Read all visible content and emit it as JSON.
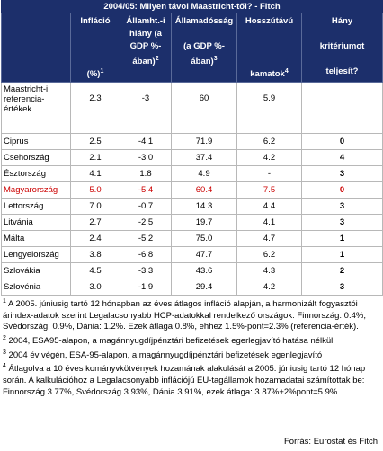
{
  "title": "2004/05: Milyen távol Maastricht-től? - Fitch",
  "header": [
    {
      "lines": [
        "Infláció",
        "",
        "",
        "",
        "(%)"
      ],
      "sup": "1"
    },
    {
      "lines": [
        "Államht.-i",
        "hiány (a",
        "GDP %-",
        "ában)"
      ],
      "sup": "2"
    },
    {
      "lines": [
        "Államadósság",
        "",
        "(a GDP %-",
        "ában)"
      ],
      "sup": "3"
    },
    {
      "lines": [
        "Hosszútávú",
        "",
        "",
        "",
        "kamatok"
      ],
      "sup": "4"
    },
    {
      "lines": [
        "Hány",
        "",
        "kritériumot",
        "",
        "teljesít?"
      ]
    }
  ],
  "reference": {
    "label": "Maastricht-i referencia-értékek",
    "values": [
      "2.3",
      "-3",
      "60",
      "5.9"
    ]
  },
  "rows": [
    {
      "country": "Ciprus",
      "values": [
        "2.5",
        "-4.1",
        "71.9",
        "6.2"
      ],
      "criteria": "0"
    },
    {
      "country": "Csehország",
      "values": [
        "2.1",
        "-3.0",
        "37.4",
        "4.2"
      ],
      "criteria": "4"
    },
    {
      "country": "Észtország",
      "values": [
        "4.1",
        "1.8",
        "4.9",
        "-"
      ],
      "criteria": "3"
    },
    {
      "country": "Magyarország",
      "values": [
        "5.0",
        "-5.4",
        "60.4",
        "7.5"
      ],
      "criteria": "0",
      "color": "#cc0000"
    },
    {
      "country": "Lettország",
      "values": [
        "7.0",
        "-0.7",
        "14.3",
        "4.4"
      ],
      "criteria": "3"
    },
    {
      "country": "Litvánia",
      "values": [
        "2.7",
        "-2.5",
        "19.7",
        "4.1"
      ],
      "criteria": "3"
    },
    {
      "country": "Málta",
      "values": [
        "2.4",
        "-5.2",
        "75.0",
        "4.7"
      ],
      "criteria": "1"
    },
    {
      "country": "Lengyelország",
      "values": [
        "3.8",
        "-6.8",
        "47.7",
        "6.2"
      ],
      "criteria": "1"
    },
    {
      "country": "Szlovákia",
      "values": [
        "4.5",
        "-3.3",
        "43.6",
        "4.3"
      ],
      "criteria": "2"
    },
    {
      "country": "Szlovénia",
      "values": [
        "3.0",
        "-1.9",
        "29.4",
        "4.2"
      ],
      "criteria": "3"
    }
  ],
  "footnotes": [
    {
      "sup": "1",
      "text": " A 2005. júniusig tartó 12 hónapban az éves átlagos infláció alapján, a harmonizált fogyasztói árindex-adatok szerint Legalacsonyabb HCP-adatokkal rendelkező országok: Finnország: 0.4%, Svédország: 0.9%, Dánia: 1.2%. Ezek átlaga 0.8%, ehhez 1.5%-pont=2.3% (referencia-érték)."
    },
    {
      "sup": "2",
      "text": " 2004, ESA95-alapon, a magánnyugdíjpénztári befizetések egerlegjavító hatása nélkül"
    },
    {
      "sup": "3",
      "text": " 2004 év végén, ESA-95-alapon, a magánnyugdíjpénztári befizetések egenlegjavító"
    },
    {
      "sup": "4",
      "text": " Átlagolva a 10 éves kományvkötvények hozamának alakulását a 2005. júniusig tartó 12 hónap során. A kalkulációhoz a Legalacsonyabb inflációjú EU-tagállamok hozamadatai számítottak be: Finnország 3.77%, Svédország 3.93%, Dánia 3.91%, ezek átlaga: 3.87%+2%pont=5.9%"
    }
  ],
  "source": "Forrás: Eurostat és Fitch"
}
